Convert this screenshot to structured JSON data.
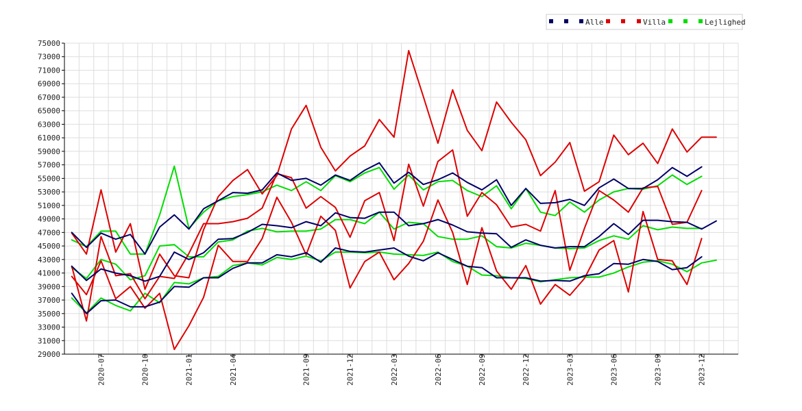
{
  "chart_data": {
    "type": "line",
    "title": "",
    "xlabel": "",
    "ylabel": "",
    "ylim": [
      29000,
      75000
    ],
    "yticks": [
      29000,
      31000,
      33000,
      35000,
      37000,
      39000,
      41000,
      43000,
      45000,
      47000,
      49000,
      51000,
      53000,
      55000,
      57000,
      59000,
      61000,
      63000,
      65000,
      67000,
      69000,
      71000,
      73000,
      75000
    ],
    "grid": true,
    "legend_placement": "top-right",
    "x": [
      "2020-05",
      "2020-06",
      "2020-07",
      "2020-08",
      "2020-09",
      "2020-10",
      "2020-11",
      "2020-12",
      "2021-01",
      "2021-02",
      "2021-03",
      "2021-04",
      "2021-05",
      "2021-06",
      "2021-07",
      "2021-08",
      "2021-09",
      "2021-10",
      "2021-11",
      "2021-12",
      "2022-01",
      "2022-02",
      "2022-03",
      "2022-04",
      "2022-05",
      "2022-06",
      "2022-07",
      "2022-08",
      "2022-09",
      "2022-10",
      "2022-11",
      "2022-12",
      "2023-01",
      "2023-02",
      "2023-03",
      "2023-04",
      "2023-05",
      "2023-06",
      "2023-07",
      "2023-08",
      "2023-09",
      "2023-10",
      "2023-11",
      "2023-12",
      "2024-01",
      "2024-02"
    ],
    "xticks": [
      "2020-07",
      "2020-10",
      "2021-01",
      "2021-04",
      "2021-09",
      "2021-12",
      "2022-03",
      "2022-06",
      "2022-09",
      "2022-12",
      "2023-03",
      "2023-06",
      "2023-09",
      "2023-12"
    ],
    "legend": [
      {
        "marker_a": "",
        "marker_b": "",
        "label": "Alle",
        "color": "#000066"
      },
      {
        "marker_a": "",
        "marker_b": "",
        "label": "Villa",
        "color": "#dd0000"
      },
      {
        "marker_a": "",
        "marker_b": "",
        "label": "Lejlighed",
        "color": "#00dd00"
      }
    ],
    "series": [
      {
        "group": "Alle",
        "color": "#000066",
        "values": [
          47000,
          44800,
          46900,
          46000,
          46700,
          43800,
          47800,
          49600,
          47500,
          50500,
          51700,
          52900,
          52800,
          53300,
          55800,
          54700,
          55000,
          54000,
          55500,
          54700,
          56200,
          57300,
          54300,
          55900,
          54100,
          54800,
          55800,
          54400,
          53300,
          54800,
          51000,
          53500,
          51300,
          51400,
          51900,
          51000,
          53600,
          54900,
          53500,
          53500,
          54800,
          56600,
          55300,
          56700,
          null,
          null
        ]
      },
      {
        "group": "Alle",
        "color": "#000066",
        "values": [
          42000,
          39900,
          41600,
          41000,
          40600,
          39800,
          40500,
          44100,
          43000,
          44000,
          46000,
          46100,
          47000,
          48200,
          48000,
          47700,
          48600,
          48000,
          49900,
          49200,
          49100,
          50000,
          50000,
          48000,
          48300,
          48900,
          48100,
          47100,
          46900,
          46800,
          44800,
          45900,
          45100,
          44700,
          44900,
          44900,
          46400,
          48300,
          46700,
          48800,
          48800,
          48600,
          48500,
          47500,
          48700,
          null
        ]
      },
      {
        "group": "Alle",
        "color": "#000066",
        "values": [
          38000,
          35000,
          36900,
          37000,
          36000,
          36000,
          36700,
          39000,
          38900,
          40300,
          40300,
          41700,
          42500,
          42500,
          43700,
          43400,
          44000,
          42600,
          44700,
          44200,
          44100,
          44400,
          44700,
          43500,
          42800,
          44000,
          43000,
          42000,
          41800,
          40300,
          40300,
          40300,
          39800,
          39900,
          39800,
          40600,
          40900,
          42400,
          42300,
          43000,
          42700,
          41500,
          41800,
          43400,
          null,
          null
        ]
      },
      {
        "group": "Villa",
        "color": "#dd0000",
        "values": [
          46900,
          43800,
          53300,
          44100,
          48300,
          38600,
          43800,
          40600,
          40300,
          47400,
          52300,
          54700,
          56300,
          52700,
          55400,
          62300,
          65800,
          59600,
          56100,
          58300,
          59800,
          63700,
          61100,
          73900,
          67100,
          60200,
          68100,
          62100,
          59100,
          66300,
          63300,
          60700,
          55400,
          57400,
          60300,
          53100,
          54500,
          61400,
          58500,
          60200,
          57200,
          62300,
          58900,
          61100,
          61100,
          null
        ]
      },
      {
        "group": "Villa",
        "color": "#dd0000",
        "values": [
          42000,
          33900,
          46400,
          40600,
          40900,
          37200,
          40500,
          40200,
          43900,
          48300,
          48300,
          48600,
          49100,
          50600,
          55700,
          55100,
          50600,
          52300,
          50700,
          46300,
          51700,
          52900,
          45800,
          57100,
          50900,
          57500,
          59200,
          49400,
          52900,
          51100,
          47800,
          48200,
          47200,
          53200,
          41400,
          47600,
          53200,
          51800,
          50000,
          53600,
          53800,
          48200,
          48500,
          53200,
          null,
          null
        ]
      },
      {
        "group": "Villa",
        "color": "#dd0000",
        "values": [
          40500,
          37800,
          42800,
          37200,
          39000,
          35800,
          38000,
          29700,
          33200,
          37400,
          45100,
          42700,
          42700,
          46100,
          52200,
          48500,
          43700,
          49400,
          47300,
          38800,
          42700,
          44100,
          40000,
          42400,
          45700,
          51800,
          47000,
          39300,
          47700,
          41300,
          38600,
          42100,
          36400,
          39300,
          37700,
          40200,
          44400,
          45800,
          38200,
          50100,
          43000,
          42800,
          39300,
          46100,
          null,
          null
        ]
      },
      {
        "group": "Lejlighed",
        "color": "#00dd00",
        "values": [
          45900,
          44900,
          47200,
          47200,
          43800,
          43800,
          49600,
          56800,
          47600,
          50000,
          51700,
          52300,
          52600,
          53000,
          54000,
          53200,
          54500,
          53200,
          55400,
          54500,
          55800,
          56600,
          53400,
          55500,
          53300,
          54500,
          54700,
          53200,
          52300,
          53900,
          50500,
          53500,
          50000,
          49500,
          51500,
          50000,
          51800,
          53000,
          53500,
          53400,
          53900,
          55500,
          54100,
          55300,
          null,
          null
        ]
      },
      {
        "group": "Lejlighed",
        "color": "#00dd00",
        "values": [
          41800,
          40200,
          43000,
          42300,
          40000,
          40600,
          45000,
          45200,
          43400,
          43400,
          45600,
          45900,
          47200,
          47600,
          47100,
          47200,
          47200,
          47500,
          48900,
          48900,
          48300,
          50000,
          47500,
          48500,
          48300,
          46400,
          46000,
          46000,
          46500,
          44900,
          44700,
          45400,
          45100,
          44700,
          44600,
          44700,
          45800,
          46500,
          46000,
          48000,
          47400,
          47800,
          47600,
          47600,
          null,
          null
        ]
      },
      {
        "group": "Lejlighed",
        "color": "#00dd00",
        "values": [
          37300,
          35100,
          37300,
          36200,
          35400,
          38000,
          36600,
          39600,
          39400,
          40300,
          40500,
          42100,
          42500,
          42200,
          43300,
          43000,
          43500,
          42800,
          44100,
          44100,
          44000,
          44100,
          43800,
          43700,
          43600,
          44100,
          42700,
          42000,
          40700,
          40600,
          40300,
          40200,
          39700,
          40000,
          40300,
          40400,
          40400,
          41000,
          41900,
          42600,
          42800,
          42300,
          41200,
          42500,
          42900,
          null
        ]
      }
    ]
  }
}
